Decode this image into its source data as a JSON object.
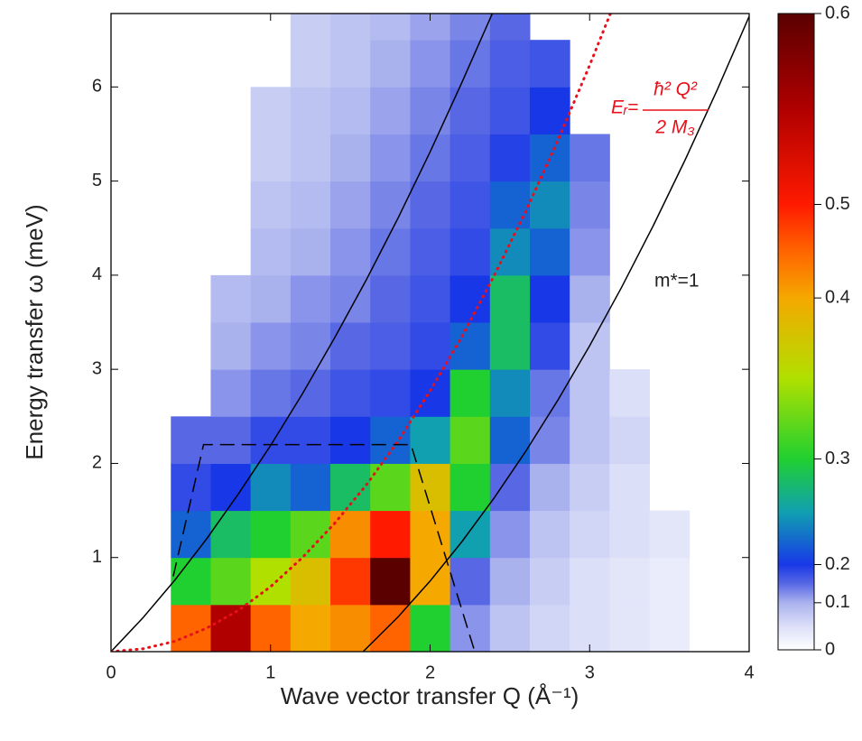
{
  "chart_data": {
    "type": "heatmap",
    "x_label": "Wave vector transfer Q (Å⁻¹)",
    "y_label": "Energy transfer ω (meV)",
    "xlim": [
      0,
      4
    ],
    "xticks": [
      0,
      1,
      2,
      3,
      4
    ],
    "ylim": [
      0,
      6.78
    ],
    "yticks": [
      1,
      2,
      3,
      4,
      5,
      6
    ],
    "x": [
      0.5,
      0.75,
      1.0,
      1.25,
      1.5,
      1.75,
      2.0,
      2.25,
      2.5,
      2.75,
      3.0,
      3.25,
      3.5
    ],
    "y": [
      0.25,
      0.75,
      1.25,
      1.75,
      2.25,
      2.75,
      3.25,
      3.75,
      4.25,
      4.75,
      5.25,
      5.75,
      6.25,
      6.75
    ],
    "z": [
      [
        0.45,
        0.55,
        0.45,
        0.4,
        0.42,
        0.45,
        0.3,
        0.12,
        0.08,
        0.06,
        0.05,
        0.04,
        0.03
      ],
      [
        0.3,
        0.32,
        0.35,
        0.38,
        0.48,
        0.6,
        0.4,
        0.15,
        0.1,
        0.07,
        0.05,
        0.04,
        0.03
      ],
      [
        0.22,
        0.28,
        0.3,
        0.32,
        0.42,
        0.5,
        0.4,
        0.25,
        0.12,
        0.08,
        0.06,
        0.05,
        0.04
      ],
      [
        0.18,
        0.2,
        0.24,
        0.22,
        0.28,
        0.32,
        0.38,
        0.3,
        0.15,
        0.1,
        0.07,
        0.05,
        null
      ],
      [
        0.15,
        0.15,
        0.18,
        0.18,
        0.2,
        0.22,
        0.25,
        0.32,
        0.22,
        0.13,
        0.08,
        0.06,
        null
      ],
      [
        null,
        0.12,
        0.14,
        0.15,
        0.17,
        0.18,
        0.2,
        0.3,
        0.24,
        0.14,
        0.08,
        0.05,
        null
      ],
      [
        null,
        0.1,
        0.12,
        0.13,
        0.15,
        0.16,
        0.18,
        0.22,
        0.28,
        0.18,
        0.08,
        null,
        null
      ],
      [
        null,
        0.09,
        0.1,
        0.12,
        0.13,
        0.15,
        0.17,
        0.2,
        0.28,
        0.2,
        0.1,
        null,
        null
      ],
      [
        null,
        null,
        0.09,
        0.1,
        0.12,
        0.14,
        0.16,
        0.18,
        0.24,
        0.22,
        0.12,
        null,
        null
      ],
      [
        null,
        null,
        0.08,
        0.09,
        0.11,
        0.13,
        0.15,
        0.17,
        0.22,
        0.24,
        0.13,
        null,
        null
      ],
      [
        null,
        null,
        0.07,
        0.08,
        0.1,
        0.12,
        0.14,
        0.16,
        0.19,
        0.22,
        0.14,
        null,
        null
      ],
      [
        null,
        null,
        0.07,
        0.08,
        0.09,
        0.11,
        0.13,
        0.15,
        0.17,
        0.2,
        null,
        null,
        null
      ],
      [
        null,
        null,
        null,
        0.07,
        0.08,
        0.1,
        0.12,
        0.14,
        0.16,
        0.17,
        null,
        null,
        null
      ],
      [
        null,
        null,
        null,
        0.07,
        0.08,
        0.09,
        0.11,
        0.13,
        0.15,
        null,
        null,
        null,
        null
      ]
    ],
    "colorbar": {
      "ticks": [
        0,
        0.1,
        0.2,
        0.3,
        0.4,
        0.5,
        0.6
      ],
      "colorscale": [
        [
          0,
          "#ffffff"
        ],
        [
          0.05,
          "#dcdff8"
        ],
        [
          0.1,
          "#aab2ee"
        ],
        [
          0.15,
          "#5868e4"
        ],
        [
          0.2,
          "#1838e8"
        ],
        [
          0.25,
          "#10a0b0"
        ],
        [
          0.3,
          "#20d030"
        ],
        [
          0.35,
          "#b0e000"
        ],
        [
          0.4,
          "#f5a800"
        ],
        [
          0.45,
          "#ff6400"
        ],
        [
          0.5,
          "#ff1a00"
        ],
        [
          0.55,
          "#b00000"
        ],
        [
          0.6,
          "#5a0000"
        ]
      ]
    },
    "curves": [
      {
        "color": "#000000",
        "style": "solid",
        "x": [
          0,
          0.2,
          0.4,
          0.6,
          0.8,
          1.0,
          1.2,
          1.4,
          1.6,
          1.8,
          2.0,
          2.2,
          2.39
        ],
        "y": [
          0,
          0.36,
          0.76,
          1.2,
          1.68,
          2.19,
          2.74,
          3.33,
          3.95,
          4.61,
          5.31,
          6.05,
          6.78
        ]
      },
      {
        "color": "#000000",
        "style": "solid",
        "x": [
          1.58,
          1.8,
          2.0,
          2.2,
          2.4,
          2.6,
          2.8,
          3.0,
          3.2,
          3.4,
          3.6,
          3.8,
          4.0
        ],
        "y": [
          0,
          0.37,
          0.75,
          1.17,
          1.63,
          2.13,
          2.67,
          3.25,
          3.87,
          4.53,
          5.23,
          5.97,
          6.75
        ]
      },
      {
        "color": "#e8101a",
        "style": "dotted",
        "x": [
          0,
          0.2,
          0.4,
          0.6,
          0.8,
          1.0,
          1.2,
          1.4,
          1.6,
          1.8,
          2.0,
          2.2,
          2.4,
          2.6,
          2.8,
          3.0,
          3.13
        ],
        "y": [
          0,
          0.03,
          0.11,
          0.25,
          0.44,
          0.69,
          1.0,
          1.36,
          1.77,
          2.24,
          2.77,
          3.35,
          3.99,
          4.68,
          5.43,
          6.23,
          6.78
        ]
      },
      {
        "color": "#000000",
        "style": "dashed",
        "x": [
          0.39,
          0.58,
          1.88,
          2.28
        ],
        "y": [
          0.8,
          2.2,
          2.2,
          0
        ]
      }
    ],
    "annotations": {
      "mass_label": "m*=1",
      "formula_lhs": "Eᵣ=",
      "formula_numerator": "ħ² Q²",
      "formula_denominator": "2 M₃"
    }
  }
}
